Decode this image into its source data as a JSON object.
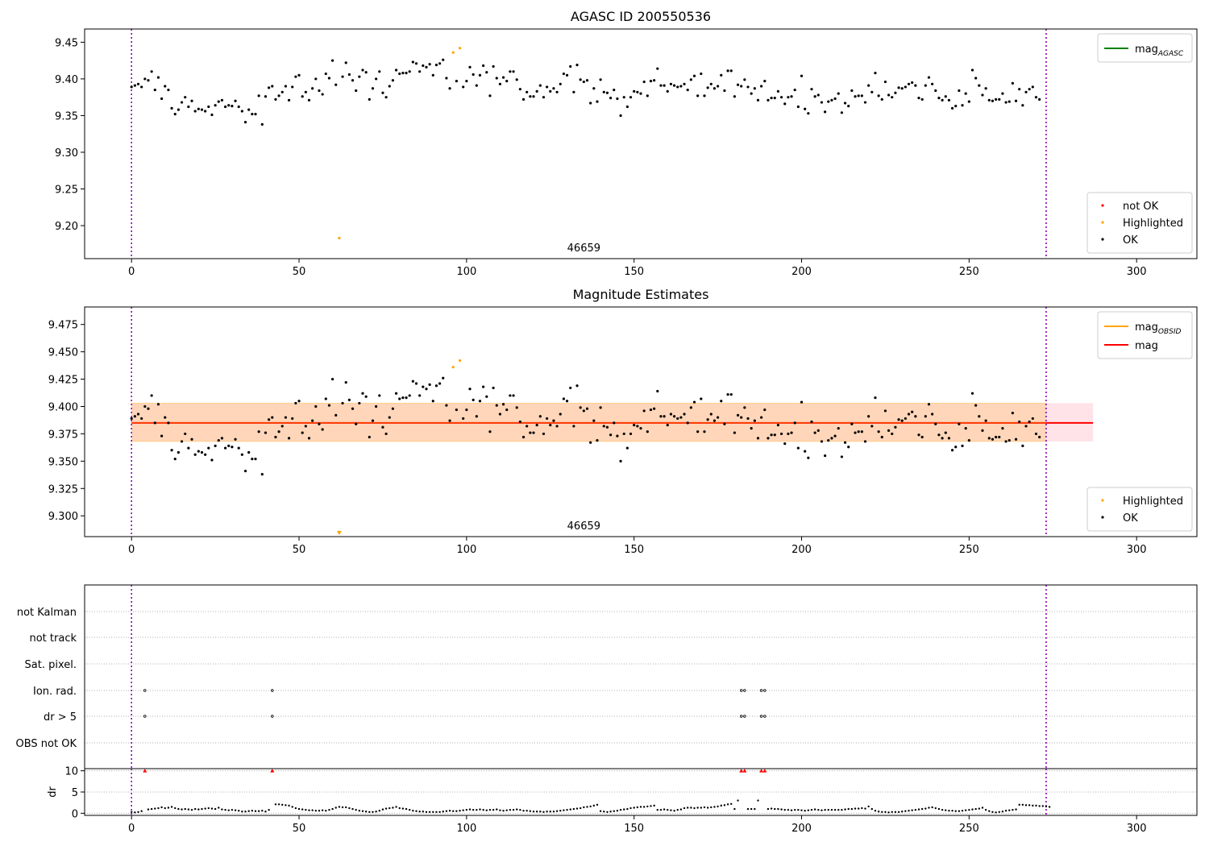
{
  "chart_data": [
    {
      "type": "scatter",
      "title": "AGASC ID 200550536",
      "xlim": [
        -14,
        318
      ],
      "ylim": [
        9.155,
        9.468
      ],
      "xticks": [
        0,
        50,
        100,
        150,
        200,
        250,
        300
      ],
      "yticks": [
        9.2,
        9.25,
        9.3,
        9.35,
        9.4,
        9.45
      ],
      "ytick_labels": [
        "9.20",
        "9.25",
        "9.30",
        "9.35",
        "9.40",
        "9.45"
      ],
      "grid": false,
      "vlines": [
        0,
        273
      ],
      "obsid_label": "46659",
      "obsid_label_x": 135,
      "legend_lines": [
        {
          "name": "mag",
          "subscript": "AGASC",
          "color": "#008000"
        }
      ],
      "legend_points": [
        {
          "name": "not OK",
          "color": "#ff0000"
        },
        {
          "name": "Highlighted",
          "color": "#ffa500"
        },
        {
          "name": "OK",
          "color": "#000000"
        }
      ],
      "ok_y": [
        9.389,
        9.391,
        9.393,
        9.389,
        9.4,
        9.398,
        9.41,
        9.385,
        9.402,
        9.373,
        9.39,
        9.385,
        9.36,
        9.352,
        9.358,
        9.368,
        9.375,
        9.362,
        9.37,
        9.356,
        9.359,
        9.358,
        9.356,
        9.362,
        9.351,
        9.364,
        9.369,
        9.371,
        9.362,
        9.364,
        9.363,
        9.37,
        9.362,
        9.356,
        9.341,
        9.358,
        9.352,
        9.352,
        9.377,
        9.338,
        9.376,
        9.388,
        9.39,
        9.372,
        9.377,
        9.382,
        9.39,
        9.371,
        9.389,
        9.403,
        9.405,
        9.376,
        9.382,
        9.371,
        9.387,
        9.4,
        9.384,
        9.379,
        9.407,
        9.401,
        9.425,
        9.392,
        9.403,
        9.422,
        9.406,
        9.398,
        9.384,
        9.403,
        9.412,
        9.409,
        9.372,
        9.387,
        9.4,
        9.41,
        9.381,
        9.375,
        9.39,
        9.398,
        9.412,
        9.407,
        9.408,
        9.408,
        9.41,
        9.423,
        9.421,
        9.41,
        9.418,
        9.416,
        9.42,
        9.405,
        9.419,
        9.421,
        9.426,
        9.401,
        9.387,
        9.397,
        9.389,
        9.397,
        9.416,
        9.406,
        9.391,
        9.405,
        9.418,
        9.409,
        9.377,
        9.417,
        9.401,
        9.393,
        9.402,
        9.397,
        9.41,
        9.41,
        9.399,
        9.386,
        9.372,
        9.382,
        9.376,
        9.376,
        9.383,
        9.391,
        9.375,
        9.389,
        9.383,
        9.387,
        9.382,
        9.393,
        9.407,
        9.405,
        9.417,
        9.382,
        9.419,
        9.399,
        9.396,
        9.398,
        9.367,
        9.387,
        9.369,
        9.399,
        9.382,
        9.381,
        9.374,
        9.385,
        9.373,
        9.35,
        9.375,
        9.362,
        9.375,
        9.383,
        9.382,
        9.38,
        9.396,
        9.377,
        9.397,
        9.398,
        9.414,
        9.391,
        9.391,
        9.383,
        9.393,
        9.391,
        9.389,
        9.39,
        9.393,
        9.385,
        9.399,
        9.404,
        9.377,
        9.407,
        9.377,
        9.388,
        9.393,
        9.387,
        9.39,
        9.405,
        9.384,
        9.411,
        9.411,
        9.376,
        9.392,
        9.39,
        9.399,
        9.389,
        9.38,
        9.387,
        9.371,
        9.39,
        9.397,
        9.371,
        9.374,
        9.374,
        9.383,
        9.375,
        9.366,
        9.375,
        9.376,
        9.385,
        9.362,
        9.404,
        9.359,
        9.353,
        9.386,
        9.376,
        9.378,
        9.368,
        9.355,
        9.369,
        9.371,
        9.373,
        9.38,
        9.354,
        9.367,
        9.363,
        9.384,
        9.376,
        9.377,
        9.377,
        9.368,
        9.391,
        9.382,
        9.408,
        9.377,
        9.372,
        9.396,
        9.378,
        9.375,
        9.381,
        9.388,
        9.387,
        9.389,
        9.393,
        9.395,
        9.391,
        9.374,
        9.372,
        9.391,
        9.402,
        9.393,
        9.384,
        9.374,
        9.371,
        9.376,
        9.371,
        9.36,
        9.363,
        9.384,
        9.364,
        9.38,
        9.369,
        9.412,
        9.401,
        9.391,
        9.378,
        9.387,
        9.371,
        9.37,
        9.372,
        9.372,
        9.38,
        9.368,
        9.369,
        9.394,
        9.37,
        9.386,
        9.364,
        9.382,
        9.386,
        9.389,
        9.375,
        9.372
      ],
      "ok_x_excluded": [
        62,
        96,
        98
      ],
      "highlighted_points": [
        [
          62,
          9.183
        ],
        [
          96,
          9.436
        ],
        [
          98,
          9.442
        ]
      ],
      "not_ok_points": []
    },
    {
      "type": "scatter",
      "title": "Magnitude Estimates",
      "xlim": [
        -14,
        318
      ],
      "ylim": [
        9.281,
        9.491
      ],
      "xticks": [
        0,
        50,
        100,
        150,
        200,
        250,
        300
      ],
      "yticks": [
        9.3,
        9.325,
        9.35,
        9.375,
        9.4,
        9.425,
        9.45,
        9.475
      ],
      "ytick_labels": [
        "9.300",
        "9.325",
        "9.350",
        "9.375",
        "9.400",
        "9.425",
        "9.450",
        "9.475"
      ],
      "grid": false,
      "vlines": [
        0,
        273
      ],
      "obsid_label": "46659",
      "obsid_label_x": 135,
      "mag": 9.385,
      "mag_band": [
        9.368,
        9.403
      ],
      "band_x": [
        0,
        287
      ],
      "legend_lines": [
        {
          "name": "mag",
          "subscript": "OBSID",
          "color": "#ffa500"
        },
        {
          "name": "mag",
          "subscript": "",
          "color": "#ff0000"
        }
      ],
      "legend_points": [
        {
          "name": "Highlighted",
          "color": "#ffa500"
        },
        {
          "name": "OK",
          "color": "#000000"
        }
      ],
      "highlighted_points": [
        [
          96,
          9.436
        ],
        [
          98,
          9.442
        ]
      ],
      "clipped_point_x": 62
    },
    {
      "type": "scatter",
      "title": "",
      "xlim": [
        -14,
        318
      ],
      "xticks": [
        0,
        50,
        100,
        150,
        200,
        250,
        300
      ],
      "vlines": [
        0,
        273
      ],
      "flag_rows": [
        "not Kalman",
        "not track",
        "Sat. pixel.",
        "Ion. rad.",
        "dr > 5",
        "OBS not OK"
      ],
      "flag_points": {
        "Ion. rad.": [
          4,
          42,
          182,
          183,
          188,
          189
        ],
        "dr > 5": [
          4,
          42,
          182,
          183,
          188,
          189
        ]
      },
      "dr_ylabel": "dr",
      "dr_ylim": [
        -0.5,
        10.5
      ],
      "dr_yticks": [
        0,
        5,
        10
      ],
      "dr_clip_marks": [
        4,
        42,
        182,
        183,
        188,
        189
      ],
      "dr_y": [
        0.3,
        0.2,
        0.3,
        0.5,
        3.0,
        0.9,
        1.0,
        1.1,
        1.2,
        1.4,
        1.2,
        1.3,
        1.5,
        1.2,
        1.0,
        0.9,
        1.0,
        0.9,
        0.8,
        1.0,
        0.9,
        1.0,
        1.1,
        1.2,
        1.1,
        1.0,
        1.3,
        0.9,
        0.8,
        0.7,
        0.8,
        0.7,
        0.6,
        0.4,
        0.4,
        0.5,
        0.6,
        0.5,
        0.5,
        0.6,
        0.4,
        0.8,
        3.0,
        2.1,
        2.1,
        2.0,
        1.9,
        1.8,
        1.5,
        1.2,
        1.0,
        0.9,
        0.8,
        0.7,
        0.7,
        0.6,
        0.6,
        0.7,
        0.6,
        0.8,
        1.0,
        1.3,
        1.5,
        1.4,
        1.4,
        1.2,
        1.0,
        0.8,
        0.6,
        0.5,
        0.4,
        0.3,
        0.3,
        0.4,
        0.6,
        0.9,
        1.1,
        1.2,
        1.3,
        1.5,
        1.2,
        1.1,
        1.0,
        0.8,
        0.6,
        0.5,
        0.4,
        0.4,
        0.3,
        0.3,
        0.3,
        0.3,
        0.3,
        0.4,
        0.5,
        0.6,
        0.5,
        0.5,
        0.6,
        0.7,
        0.8,
        0.9,
        0.8,
        0.8,
        0.9,
        0.8,
        0.7,
        0.8,
        0.8,
        0.9,
        0.7,
        0.6,
        0.7,
        0.8,
        0.8,
        0.9,
        0.8,
        0.6,
        0.6,
        0.5,
        0.4,
        0.4,
        0.4,
        0.3,
        0.4,
        0.4,
        0.4,
        0.5,
        0.6,
        0.7,
        0.8,
        0.9,
        1.0,
        1.1,
        1.2,
        1.4,
        1.5,
        1.6,
        1.8,
        2.0,
        0.5,
        0.4,
        0.3,
        0.4,
        0.5,
        0.6,
        0.8,
        0.9,
        1.0,
        1.2,
        1.3,
        1.4,
        1.5,
        1.5,
        1.6,
        1.7,
        1.8,
        0.8,
        0.8,
        0.9,
        0.8,
        0.7,
        0.6,
        0.8,
        0.9,
        1.2,
        1.3,
        1.3,
        1.2,
        1.3,
        1.3,
        1.4,
        1.3,
        1.4,
        1.5,
        1.6,
        1.8,
        1.9,
        2.1,
        2.2,
        1.0,
        3.0,
        3.0,
        1.0,
        1.0,
        1.0,
        1.0,
        3.0,
        3.0,
        1.2,
        1.0,
        1.1,
        1.0,
        1.0,
        0.9,
        0.8,
        0.8,
        0.7,
        0.8,
        0.8,
        0.7,
        0.6,
        0.7,
        0.8,
        0.9,
        0.8,
        0.7,
        0.8,
        0.8,
        0.8,
        0.8,
        0.8,
        0.8,
        0.9,
        1.0,
        1.0,
        1.1,
        1.1,
        1.2,
        1.1,
        1.6,
        1.0,
        0.6,
        0.4,
        0.3,
        0.3,
        0.2,
        0.3,
        0.3,
        0.3,
        0.4,
        0.5,
        0.6,
        0.7,
        0.8,
        0.9,
        1.0,
        1.1,
        1.3,
        1.4,
        1.2,
        1.0,
        0.8,
        0.7,
        0.6,
        0.6,
        0.5,
        0.5,
        0.6,
        0.7,
        0.8,
        0.9,
        1.0,
        1.1,
        1.3,
        0.8,
        0.5,
        0.3,
        0.2,
        0.3,
        0.4,
        0.6,
        0.7,
        0.8,
        0.9,
        2.0,
        2.0,
        1.9,
        1.9,
        1.8,
        1.8,
        1.7,
        1.7,
        1.6,
        1.5
      ]
    }
  ]
}
